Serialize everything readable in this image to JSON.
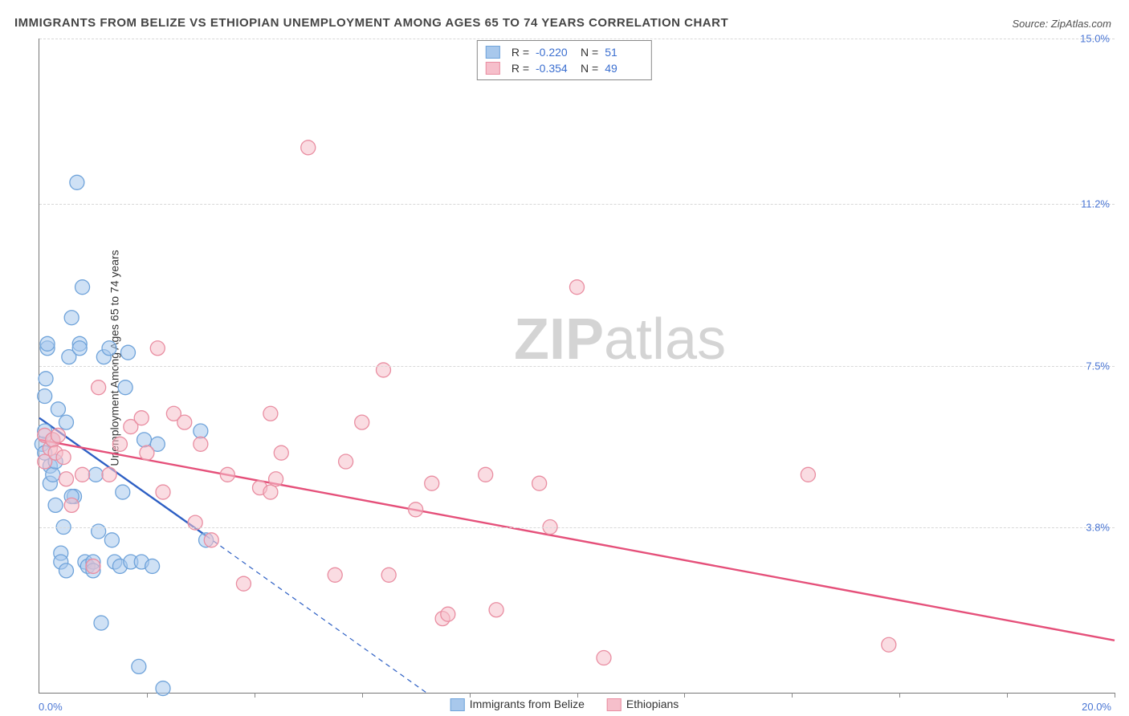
{
  "title": "IMMIGRANTS FROM BELIZE VS ETHIOPIAN UNEMPLOYMENT AMONG AGES 65 TO 74 YEARS CORRELATION CHART",
  "source_prefix": "Source: ",
  "source_name": "ZipAtlas.com",
  "y_axis_label": "Unemployment Among Ages 65 to 74 years",
  "watermark_bold": "ZIP",
  "watermark_rest": "atlas",
  "chart": {
    "type": "scatter",
    "xlim": [
      0.0,
      20.0
    ],
    "ylim": [
      0.0,
      15.0
    ],
    "x_origin_label": "0.0%",
    "x_max_label": "20.0%",
    "y_ticks": [
      {
        "v": 3.8,
        "label": "3.8%"
      },
      {
        "v": 7.5,
        "label": "7.5%"
      },
      {
        "v": 11.2,
        "label": "11.2%"
      },
      {
        "v": 15.0,
        "label": "15.0%"
      }
    ],
    "x_tick_positions": [
      2,
      4,
      6,
      8,
      10,
      12,
      14,
      16,
      18,
      20
    ],
    "grid_color": "#d8d8d8",
    "background_color": "#ffffff",
    "marker_radius": 9,
    "marker_stroke_width": 1.3,
    "trend_line_width": 2.4,
    "series": [
      {
        "key": "belize",
        "label": "Immigrants from Belize",
        "fill": "#a8c8ec",
        "stroke": "#6fa3da",
        "fill_opacity": 0.55,
        "trend_color": "#2d5fc4",
        "trend": {
          "x1": 0.0,
          "y1": 6.3,
          "x2": 3.1,
          "y2": 3.6
        },
        "trend_dash": {
          "x1": 3.1,
          "y1": 3.6,
          "x2": 7.2,
          "y2": 0.0
        },
        "points": [
          [
            0.05,
            5.7
          ],
          [
            0.1,
            5.5
          ],
          [
            0.1,
            6.0
          ],
          [
            0.1,
            6.8
          ],
          [
            0.12,
            7.2
          ],
          [
            0.15,
            7.9
          ],
          [
            0.15,
            8.0
          ],
          [
            0.2,
            4.8
          ],
          [
            0.2,
            5.2
          ],
          [
            0.25,
            5.0
          ],
          [
            0.25,
            5.8
          ],
          [
            0.3,
            4.3
          ],
          [
            0.3,
            5.3
          ],
          [
            0.35,
            6.5
          ],
          [
            0.4,
            3.2
          ],
          [
            0.4,
            3.0
          ],
          [
            0.45,
            3.8
          ],
          [
            0.5,
            2.8
          ],
          [
            0.55,
            7.7
          ],
          [
            0.6,
            8.6
          ],
          [
            0.65,
            4.5
          ],
          [
            0.7,
            11.7
          ],
          [
            0.75,
            8.0
          ],
          [
            0.75,
            7.9
          ],
          [
            0.8,
            9.3
          ],
          [
            0.85,
            3.0
          ],
          [
            0.9,
            2.9
          ],
          [
            1.0,
            3.0
          ],
          [
            1.0,
            2.8
          ],
          [
            1.05,
            5.0
          ],
          [
            1.1,
            3.7
          ],
          [
            1.15,
            1.6
          ],
          [
            1.2,
            7.7
          ],
          [
            1.3,
            7.9
          ],
          [
            1.35,
            3.5
          ],
          [
            1.4,
            3.0
          ],
          [
            1.5,
            2.9
          ],
          [
            1.55,
            4.6
          ],
          [
            1.6,
            7.0
          ],
          [
            1.65,
            7.8
          ],
          [
            1.7,
            3.0
          ],
          [
            1.85,
            0.6
          ],
          [
            1.9,
            3.0
          ],
          [
            1.95,
            5.8
          ],
          [
            2.1,
            2.9
          ],
          [
            2.2,
            5.7
          ],
          [
            2.3,
            0.1
          ],
          [
            3.0,
            6.0
          ],
          [
            3.1,
            3.5
          ],
          [
            0.6,
            4.5
          ],
          [
            0.5,
            6.2
          ]
        ]
      },
      {
        "key": "ethiopians",
        "label": "Ethiopians",
        "fill": "#f6bfcb",
        "stroke": "#e98da1",
        "fill_opacity": 0.55,
        "trend_color": "#e5507a",
        "trend": {
          "x1": 0.0,
          "y1": 5.8,
          "x2": 20.0,
          "y2": 1.2
        },
        "points": [
          [
            0.1,
            5.9
          ],
          [
            0.1,
            5.3
          ],
          [
            0.2,
            5.6
          ],
          [
            0.25,
            5.8
          ],
          [
            0.3,
            5.5
          ],
          [
            0.35,
            5.9
          ],
          [
            0.45,
            5.4
          ],
          [
            0.5,
            4.9
          ],
          [
            0.6,
            4.3
          ],
          [
            0.8,
            5.0
          ],
          [
            1.0,
            2.9
          ],
          [
            1.1,
            7.0
          ],
          [
            1.3,
            5.0
          ],
          [
            1.5,
            5.7
          ],
          [
            1.7,
            6.1
          ],
          [
            1.9,
            6.3
          ],
          [
            2.0,
            5.5
          ],
          [
            2.2,
            7.9
          ],
          [
            2.3,
            4.6
          ],
          [
            2.5,
            6.4
          ],
          [
            2.7,
            6.2
          ],
          [
            2.9,
            3.9
          ],
          [
            3.0,
            5.7
          ],
          [
            3.2,
            3.5
          ],
          [
            3.5,
            5.0
          ],
          [
            3.8,
            2.5
          ],
          [
            4.1,
            4.7
          ],
          [
            4.3,
            6.4
          ],
          [
            4.3,
            4.6
          ],
          [
            4.4,
            4.9
          ],
          [
            4.5,
            5.5
          ],
          [
            5.0,
            12.5
          ],
          [
            5.5,
            2.7
          ],
          [
            5.7,
            5.3
          ],
          [
            6.0,
            6.2
          ],
          [
            6.4,
            7.4
          ],
          [
            6.5,
            2.7
          ],
          [
            7.3,
            4.8
          ],
          [
            7.5,
            1.7
          ],
          [
            7.6,
            1.8
          ],
          [
            8.3,
            5.0
          ],
          [
            8.5,
            1.9
          ],
          [
            9.3,
            4.8
          ],
          [
            9.5,
            3.8
          ],
          [
            10.0,
            9.3
          ],
          [
            10.5,
            0.8
          ],
          [
            14.3,
            5.0
          ],
          [
            15.8,
            1.1
          ],
          [
            7.0,
            4.2
          ]
        ]
      }
    ]
  },
  "stats_legend": {
    "rows": [
      {
        "swatch_fill": "#a8c8ec",
        "swatch_stroke": "#6fa3da",
        "r_label": "R =",
        "r_val": "-0.220",
        "n_label": "N =",
        "n_val": "51"
      },
      {
        "swatch_fill": "#f6bfcb",
        "swatch_stroke": "#e98da1",
        "r_label": "R =",
        "r_val": "-0.354",
        "n_label": "N =",
        "n_val": "49"
      }
    ]
  },
  "bottom_legend": [
    {
      "swatch_fill": "#a8c8ec",
      "swatch_stroke": "#6fa3da",
      "label": "Immigrants from Belize"
    },
    {
      "swatch_fill": "#f6bfcb",
      "swatch_stroke": "#e98da1",
      "label": "Ethiopians"
    }
  ]
}
